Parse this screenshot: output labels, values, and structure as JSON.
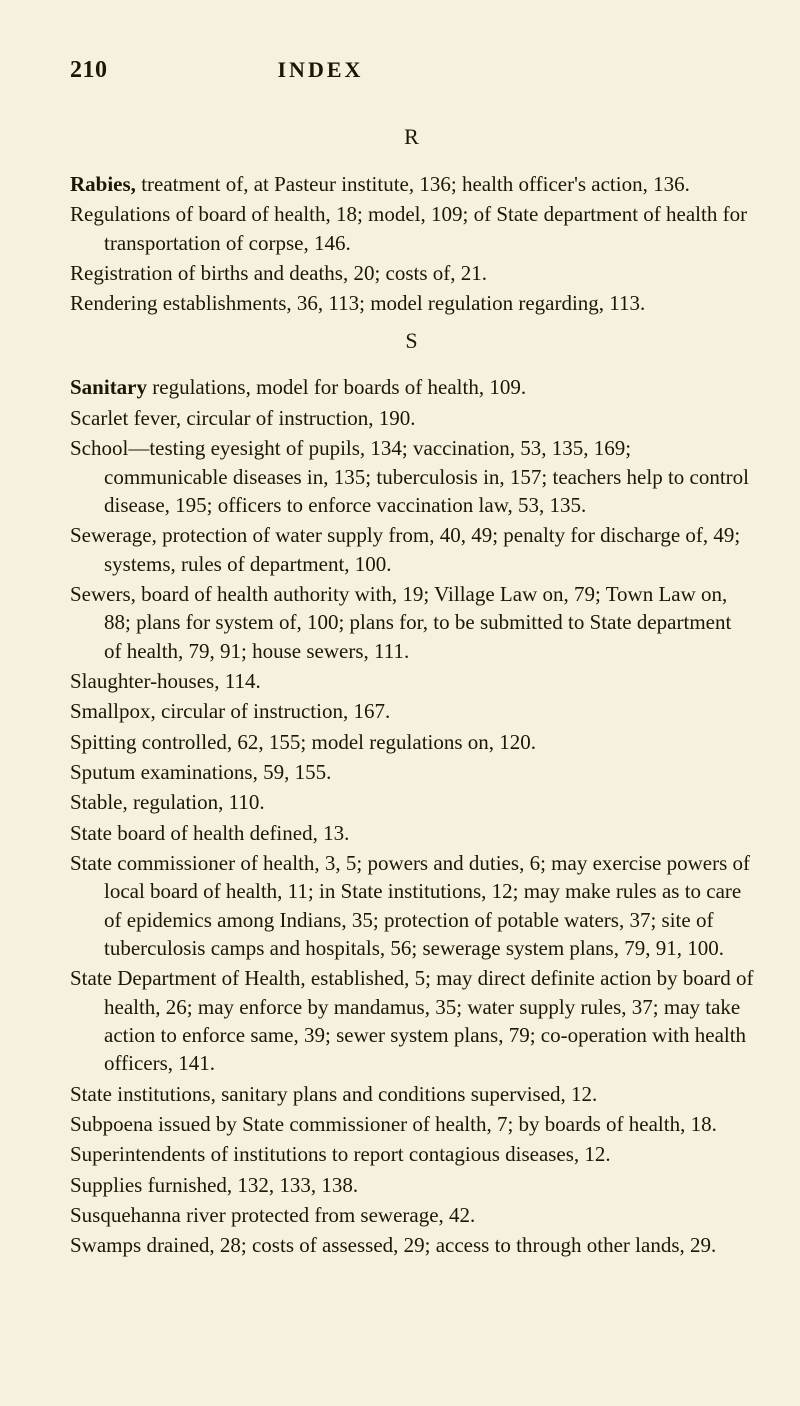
{
  "header": {
    "page_number": "210",
    "title": "INDEX"
  },
  "section_r": {
    "letter": "R",
    "entries": [
      {
        "lead": "Rabies,",
        "rest": " treatment of, at Pasteur institute, 136; health officer's action, 136."
      },
      {
        "lead": "Regulations",
        "rest": " of board of health, 18; model, 109; of State department of health for transportation of corpse, 146."
      },
      {
        "lead": "Registration",
        "rest": " of births and deaths, 20; costs of, 21."
      },
      {
        "lead": "Rendering",
        "rest": " establishments, 36, 113; model regulation regarding, 113."
      }
    ]
  },
  "section_s": {
    "letter": "S",
    "entries": [
      {
        "lead": "Sanitary",
        "rest": " regulations, model for boards of health, 109."
      },
      {
        "lead": "Scarlet",
        "rest": " fever, circular of instruction, 190."
      },
      {
        "lead": "School",
        "rest": "—testing eyesight of pupils, 134; vaccination, 53, 135, 169; communicable diseases in, 135; tuberculosis in, 157; teachers help to control disease, 195; officers to enforce vaccination law, 53, 135."
      },
      {
        "lead": "Sewerage,",
        "rest": " protection of water supply from, 40, 49; penalty for discharge of, 49; systems, rules of department, 100."
      },
      {
        "lead": "Sewers,",
        "rest": " board of health authority with, 19; Village Law on, 79; Town Law on, 88; plans for system of, 100; plans for, to be submitted to State department of health, 79, 91; house sewers, 111."
      },
      {
        "lead": "Slaughter-houses,",
        "rest": " 114."
      },
      {
        "lead": "Smallpox,",
        "rest": " circular of instruction, 167."
      },
      {
        "lead": "Spitting",
        "rest": " controlled, 62, 155; model regulations on, 120."
      },
      {
        "lead": "Sputum",
        "rest": " examinations, 59, 155."
      },
      {
        "lead": "Stable,",
        "rest": " regulation, 110."
      },
      {
        "lead": "State",
        "rest": " board of health defined, 13."
      },
      {
        "lead": "State",
        "rest": " commissioner of health, 3, 5; powers and duties, 6; may exercise powers of local board of health, 11; in State institutions, 12; may make rules as to care of epidemics among Indians, 35; protection of potable waters, 37; site of tuberculosis camps and hospitals, 56; sewerage system plans, 79, 91, 100."
      },
      {
        "lead": "State",
        "rest": " Department of Health, established, 5; may direct definite action by board of health, 26; may enforce by mandamus, 35; water supply rules, 37; may take action to enforce same, 39; sewer system plans, 79; co-operation with health officers, 141."
      },
      {
        "lead": "State",
        "rest": " institutions, sanitary plans and conditions supervised, 12."
      },
      {
        "lead": "Subpoena",
        "rest": " issued by State commissioner of health, 7; by boards of health, 18."
      },
      {
        "lead": "Superintendents",
        "rest": " of institutions to report contagious diseases, 12."
      },
      {
        "lead": "Supplies",
        "rest": " furnished, 132, 133, 138."
      },
      {
        "lead": "Susquehanna",
        "rest": " river protected from sewerage, 42."
      },
      {
        "lead": "Swamps",
        "rest": " drained, 28; costs of assessed, 29; access to through other lands, 29."
      }
    ]
  }
}
